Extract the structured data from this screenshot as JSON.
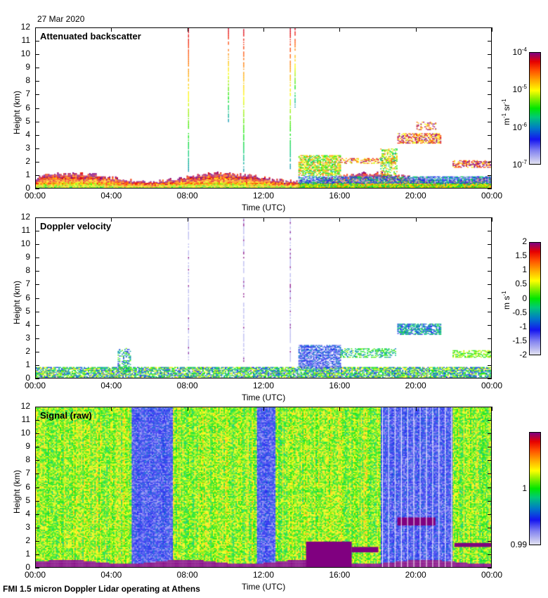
{
  "date": "27 Mar 2020",
  "footer": "FMI 1.5 micron Doppler Lidar operating at Athens",
  "chart_data": [
    {
      "type": "heatmap",
      "title": "Attenuated backscatter",
      "xlabel": "Time (UTC)",
      "ylabel": "Height (km)",
      "xlim": [
        0,
        24
      ],
      "ylim": [
        0,
        12
      ],
      "xticks": [
        "00:00",
        "04:00",
        "08:00",
        "12:00",
        "16:00",
        "20:00",
        "00:00"
      ],
      "yticks": [
        "0",
        "1",
        "2",
        "3",
        "4",
        "5",
        "6",
        "7",
        "8",
        "9",
        "10",
        "11",
        "12"
      ],
      "colorbar": {
        "label_base": "m",
        "label_exp1": "-1",
        "label_mid": " sr",
        "label_exp2": "-1",
        "scale": "log",
        "range": [
          1e-07,
          0.0001
        ],
        "ticks": [
          {
            "base": "10",
            "exp": "-4"
          },
          {
            "base": "10",
            "exp": "-5"
          },
          {
            "base": "10",
            "exp": "-6"
          },
          {
            "base": "10",
            "exp": "-7"
          }
        ]
      },
      "features": [
        {
          "name": "boundary layer",
          "t": [
            0,
            24
          ],
          "h": [
            0,
            1.0
          ],
          "level": "high"
        },
        {
          "name": "precip streak",
          "t": [
            8.0,
            8.05
          ],
          "h": [
            1.3,
            12
          ],
          "level": "graded"
        },
        {
          "name": "precip streak",
          "t": [
            10.9,
            11.0
          ],
          "h": [
            1.3,
            12
          ],
          "level": "graded"
        },
        {
          "name": "precip streak",
          "t": [
            13.3,
            13.45
          ],
          "h": [
            1.5,
            12
          ],
          "level": "graded"
        },
        {
          "name": "rising cloud",
          "t": [
            13.8,
            16.0
          ],
          "h": [
            1.0,
            2.6
          ],
          "level": "mid"
        },
        {
          "name": "mid cloud",
          "t": [
            16.0,
            19.0
          ],
          "h": [
            1.5,
            3.0
          ],
          "level": "mid"
        },
        {
          "name": "cloud layer",
          "t": [
            18.8,
            21.5
          ],
          "h": [
            3.4,
            5.0
          ],
          "level": "high"
        },
        {
          "name": "low cloud",
          "t": [
            21.5,
            24
          ],
          "h": [
            1.6,
            2.1
          ],
          "level": "high"
        }
      ]
    },
    {
      "type": "heatmap",
      "title": "Doppler velocity",
      "xlabel": "Time (UTC)",
      "ylabel": "Height (km)",
      "xlim": [
        0,
        24
      ],
      "ylim": [
        0,
        12
      ],
      "xticks": [
        "00:00",
        "04:00",
        "08:00",
        "12:00",
        "16:00",
        "20:00",
        "00:00"
      ],
      "yticks": [
        "0",
        "1",
        "2",
        "3",
        "4",
        "5",
        "6",
        "7",
        "8",
        "9",
        "10",
        "11",
        "12"
      ],
      "colorbar": {
        "label_base": "m s",
        "label_exp1": "-1",
        "scale": "linear",
        "range": [
          -2,
          2
        ],
        "ticks": [
          "2",
          "1.5",
          "1",
          "0.5",
          "0",
          "-0.5",
          "-1",
          "-1.5",
          "-2"
        ]
      }
    },
    {
      "type": "heatmap",
      "title": "Signal (raw)",
      "xlabel": "Time (UTC)",
      "ylabel": "Height (km)",
      "xlim": [
        0,
        24
      ],
      "ylim": [
        0,
        12
      ],
      "xticks": [
        "00:00",
        "04:00",
        "08:00",
        "12:00",
        "16:00",
        "20:00",
        "00:00"
      ],
      "yticks": [
        "0",
        "1",
        "2",
        "3",
        "4",
        "5",
        "6",
        "7",
        "8",
        "9",
        "10",
        "11",
        "12"
      ],
      "colorbar": {
        "scale": "linear",
        "range": [
          0.99,
          1.01
        ],
        "ticks": [
          "1",
          "0.99"
        ]
      },
      "low_signal_periods": [
        [
          5.0,
          7.2
        ],
        [
          11.6,
          12.6
        ],
        [
          18.1,
          21.9
        ]
      ]
    }
  ]
}
